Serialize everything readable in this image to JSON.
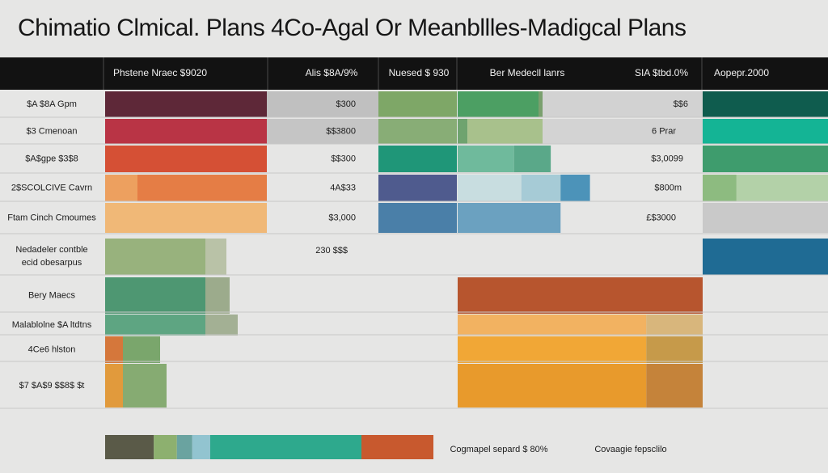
{
  "title": "Chimatio Clmical. Plans 4Co-Agal Or Meanbllles-Madigcal Plans",
  "colors": {
    "header_bg": "#121212",
    "header_text": "#f2f2f2",
    "label_text": "#1c1c1c",
    "row_line": "#c8c8c8"
  },
  "chart_data": {
    "type": "table",
    "title": "Chimatio Clmical. Plans 4Co-Agal Or Meanbllles-Madigcal Plans",
    "columns": [
      "Phstene Nraec $9020",
      "Alis $8A/9%",
      "Nuesed $ 930",
      "Ber Medecll lanrs",
      "SIA $tbd.0%",
      "Aopepr.2000"
    ],
    "rows": [
      {
        "label": "$A $8A Gpm",
        "values": [
          "$300",
          "$$6"
        ],
        "bars": [
          {
            "col": 0,
            "from": 0.0,
            "to": 1.0,
            "color": "#5e2838"
          },
          {
            "col": 1,
            "from": 0.0,
            "to": 1.0,
            "color": "#c0c0c0"
          },
          {
            "col": 2,
            "from": 0.0,
            "to": 1.0,
            "color": "#7ea767"
          },
          {
            "col": 3,
            "from": 0.0,
            "to": 0.33,
            "color": "#4c9f63"
          },
          {
            "col": 3,
            "from": 0.33,
            "to": 0.42,
            "color": "#7aa06e"
          },
          {
            "col": 3,
            "from": 0.42,
            "to": 1.0,
            "color": "#c9c9c9"
          },
          {
            "col": 4,
            "from": 0.0,
            "to": 1.0,
            "color": "#d2d2d2"
          },
          {
            "col": 5,
            "from": 0.0,
            "to": 1.0,
            "color": "#0f5c4e"
          }
        ]
      },
      {
        "label": "$3 Cmenoan",
        "values": [
          "$$3800",
          "6 Prar"
        ],
        "bars": [
          {
            "col": 0,
            "from": 0.0,
            "to": 1.0,
            "color": "#b93445"
          },
          {
            "col": 1,
            "from": 0.0,
            "to": 1.0,
            "color": "#c5c5c5"
          },
          {
            "col": 2,
            "from": 0.0,
            "to": 1.0,
            "color": "#88ad76"
          },
          {
            "col": 3,
            "from": 0.0,
            "to": 0.04,
            "color": "#6fa36f"
          },
          {
            "col": 3,
            "from": 0.04,
            "to": 0.42,
            "color": "#a8c18c"
          },
          {
            "col": 3,
            "from": 0.42,
            "to": 1.0,
            "color": "#d3d3d3"
          },
          {
            "col": 4,
            "from": 0.0,
            "to": 1.0,
            "color": "#d3d3d3"
          },
          {
            "col": 5,
            "from": 0.0,
            "to": 1.0,
            "color": "#14b495"
          }
        ]
      },
      {
        "label": "$A$gpe $3$8",
        "values": [
          "$$300",
          "$3,0099"
        ],
        "bars": [
          {
            "col": 0,
            "from": 0.0,
            "to": 1.0,
            "color": "#d55035"
          },
          {
            "col": 2,
            "from": 0.0,
            "to": 1.0,
            "color": "#1f9678"
          },
          {
            "col": 3,
            "from": 0.0,
            "to": 0.23,
            "color": "#6fba9c"
          },
          {
            "col": 3,
            "from": 0.23,
            "to": 0.38,
            "color": "#5aa889"
          },
          {
            "col": 5,
            "from": 0.0,
            "to": 1.0,
            "color": "#3e9c6d"
          }
        ]
      },
      {
        "label": "2$SCOLCIVE Cavrn",
        "values": [
          "4A$33",
          "$800m"
        ],
        "bars": [
          {
            "col": 0,
            "from": 0.0,
            "to": 0.2,
            "color": "#eda05f"
          },
          {
            "col": 0,
            "from": 0.2,
            "to": 1.0,
            "color": "#e57d45"
          },
          {
            "col": 2,
            "from": 0.0,
            "to": 1.0,
            "color": "#4f5b8e"
          },
          {
            "col": 3,
            "from": 0.0,
            "to": 0.26,
            "color": "#c8dde0"
          },
          {
            "col": 3,
            "from": 0.26,
            "to": 0.42,
            "color": "#a6cbd6"
          },
          {
            "col": 3,
            "from": 0.42,
            "to": 0.54,
            "color": "#4c93b9"
          },
          {
            "col": 5,
            "from": 0.0,
            "to": 0.27,
            "color": "#8dbb80"
          },
          {
            "col": 5,
            "from": 0.27,
            "to": 1.0,
            "color": "#b3d1a8"
          }
        ]
      },
      {
        "label": "Ftam Cinch Cmoumes",
        "values": [
          "$3,000",
          "£$3000"
        ],
        "bars": [
          {
            "col": 0,
            "from": 0.0,
            "to": 1.0,
            "color": "#f0b877"
          },
          {
            "col": 2,
            "from": 0.0,
            "to": 1.0,
            "color": "#4a7fa8"
          },
          {
            "col": 3,
            "from": 0.0,
            "to": 0.42,
            "color": "#6ba1c0"
          },
          {
            "col": 5,
            "from": 0.0,
            "to": 1.0,
            "color": "#c9c9c9"
          }
        ]
      },
      {
        "label": "Nedadeler contble ecid obesarpus",
        "values": [
          "230 $$$"
        ],
        "bars": [
          {
            "col": 0,
            "from": 0.0,
            "to": 0.62,
            "color": "#98b27d"
          },
          {
            "col": 0,
            "from": 0.62,
            "to": 0.75,
            "color": "#b9c2a7"
          },
          {
            "col": 5,
            "from": 0.0,
            "to": 1.0,
            "color": "#1f6b94"
          }
        ]
      },
      {
        "label": "Bery Maecs",
        "values": [],
        "bars": [
          {
            "col": 0,
            "from": 0.0,
            "to": 0.62,
            "color": "#4e9772"
          },
          {
            "col": 0,
            "from": 0.62,
            "to": 0.77,
            "color": "#9cab8c"
          },
          {
            "col": 3,
            "from": 0.0,
            "to": 1.0,
            "color": "#b7552e"
          }
        ]
      },
      {
        "label": "Malablolne $A ltdtns",
        "values": [],
        "bars": [
          {
            "col": 0,
            "from": 0.0,
            "to": 0.62,
            "color": "#5ea582"
          },
          {
            "col": 0,
            "from": 0.62,
            "to": 0.82,
            "color": "#a3b094"
          },
          {
            "col": 3,
            "from": 0.0,
            "to": 0.77,
            "color": "#f2b261"
          },
          {
            "col": 3,
            "from": 0.77,
            "to": 1.0,
            "color": "#d8b67c"
          }
        ]
      },
      {
        "label": "4Ce6 hlston",
        "values": [],
        "bars": [
          {
            "col": 0,
            "from": 0.0,
            "to": 0.11,
            "color": "#d5773b"
          },
          {
            "col": 0,
            "from": 0.11,
            "to": 0.34,
            "color": "#7aa66c"
          },
          {
            "col": 3,
            "from": 0.0,
            "to": 0.77,
            "color": "#f1a736"
          },
          {
            "col": 3,
            "from": 0.77,
            "to": 1.0,
            "color": "#c69a4a"
          }
        ]
      },
      {
        "label": "$7 $A$9 $$8$ $t",
        "values": [],
        "bars": [
          {
            "col": 0,
            "from": 0.0,
            "to": 0.11,
            "color": "#e19a3c"
          },
          {
            "col": 0,
            "from": 0.11,
            "to": 0.38,
            "color": "#86ab72"
          },
          {
            "col": 3,
            "from": 0.0,
            "to": 0.77,
            "color": "#e89a2c"
          },
          {
            "col": 3,
            "from": 0.77,
            "to": 1.0,
            "color": "#c5833a"
          }
        ]
      }
    ],
    "legend": {
      "position": "bottom",
      "segments": [
        {
          "color": "#5a5a48",
          "share": 0.19
        },
        {
          "color": "#8db06f",
          "share": 0.09
        },
        {
          "color": "#6aa3a0",
          "share": 0.06
        },
        {
          "color": "#92c4d0",
          "share": 0.07
        },
        {
          "color": "#2ea98d",
          "share": 0.59
        }
      ],
      "segment_accent": "#c8592e",
      "labels": [
        "Cogmapel separd $ 80%",
        "Covaagie fepsclilo"
      ]
    }
  }
}
